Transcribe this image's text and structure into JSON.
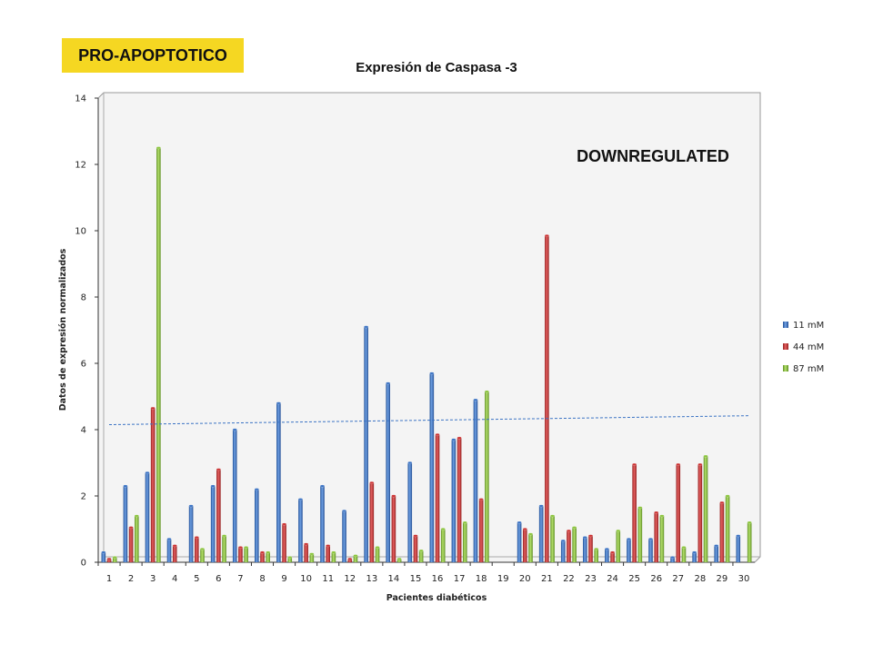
{
  "badge": {
    "text": "PRO-APOPTOTICO"
  },
  "chart_data": {
    "type": "bar",
    "title": "Expresión de Caspasa -3",
    "xlabel": "Pacientes diabéticos",
    "ylabel": "Datos de expresión normalizados",
    "ylim": [
      0,
      14
    ],
    "yticks": [
      0,
      2,
      4,
      6,
      8,
      10,
      12,
      14
    ],
    "grid": false,
    "legend_position": "right",
    "annotation": "DOWNREGULATED",
    "categories": [
      "1",
      "2",
      "3",
      "4",
      "5",
      "6",
      "7",
      "8",
      "9",
      "10",
      "11",
      "12",
      "13",
      "14",
      "15",
      "16",
      "17",
      "18",
      "19",
      "20",
      "21",
      "22",
      "23",
      "24",
      "25",
      "26",
      "27",
      "28",
      "29",
      "30"
    ],
    "series": [
      {
        "name": "11 mM",
        "color": "#3b73c4",
        "values": [
          0.3,
          2.3,
          2.7,
          0.7,
          1.7,
          2.3,
          4.0,
          2.2,
          4.8,
          1.9,
          2.3,
          1.55,
          7.1,
          5.4,
          3.0,
          5.7,
          3.7,
          4.9,
          0,
          1.2,
          1.7,
          0.65,
          0.75,
          0.4,
          0.7,
          0.7,
          0.15,
          0.3,
          0.5,
          0.8
        ]
      },
      {
        "name": "44 mM",
        "color": "#cc3232",
        "values": [
          0.1,
          1.05,
          4.65,
          0.5,
          0.75,
          2.8,
          0.45,
          0.3,
          1.15,
          0.55,
          0.5,
          0.1,
          2.4,
          2.0,
          0.8,
          3.85,
          3.75,
          1.9,
          0,
          1.0,
          9.85,
          0.95,
          0.8,
          0.3,
          2.95,
          1.5,
          2.95,
          2.95,
          1.8,
          0
        ]
      },
      {
        "name": "87 mM",
        "color": "#8bc53c",
        "values": [
          0.15,
          1.4,
          12.5,
          0,
          0.4,
          0.8,
          0.45,
          0.3,
          0.15,
          0.25,
          0.3,
          0.2,
          0.45,
          0.1,
          0.35,
          1.0,
          1.2,
          5.15,
          0,
          0.85,
          1.4,
          1.05,
          0.4,
          0.95,
          1.65,
          1.4,
          0.45,
          3.2,
          2.0,
          1.2
        ]
      }
    ],
    "trendline": {
      "series": "11 mM",
      "start_value": 4.15,
      "end_value": 4.42,
      "color": "#3b73c4",
      "style": "dashed"
    }
  }
}
